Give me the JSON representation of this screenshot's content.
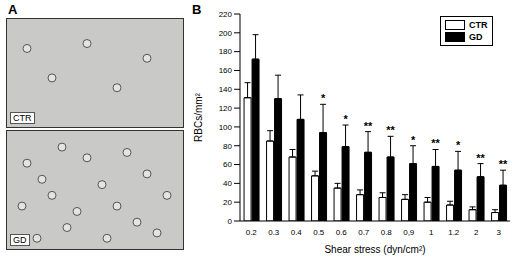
{
  "panel_labels": [
    "A",
    "B"
  ],
  "images": [
    {
      "label": "CTR"
    },
    {
      "label": "GD"
    }
  ],
  "chart_data": {
    "type": "bar",
    "x_label": "Shear stress (dyn/cm²)",
    "y_label": "RBCs/mm²",
    "categories": [
      "0.2",
      "0.3",
      "0.4",
      "0.5",
      "0.6",
      "0.7",
      "0.8",
      "0,9",
      "1",
      "1.2",
      "2",
      "3"
    ],
    "series": [
      {
        "name": "CTR",
        "color": "#ffffff",
        "values": [
          131,
          85,
          68,
          48,
          35,
          28,
          25,
          23,
          20,
          17,
          12,
          9
        ],
        "errors": [
          16,
          11,
          8,
          5,
          5,
          5,
          5,
          5,
          5,
          4,
          3,
          3
        ]
      },
      {
        "name": "GD",
        "color": "#000000",
        "values": [
          172,
          130,
          108,
          94,
          79,
          73,
          68,
          61,
          58,
          54,
          47,
          38
        ],
        "errors": [
          26,
          25,
          26,
          30,
          23,
          22,
          22,
          19,
          18,
          20,
          14,
          16
        ]
      }
    ],
    "annotations": [
      null,
      null,
      null,
      "*",
      "*",
      "**",
      "**",
      "*",
      "**",
      "*",
      "**",
      "**"
    ],
    "ylim": [
      0,
      220
    ],
    "yticks": [
      0,
      20,
      40,
      60,
      80,
      100,
      120,
      140,
      160,
      180,
      200,
      220
    ],
    "legend": "top-right",
    "grid": false
  }
}
